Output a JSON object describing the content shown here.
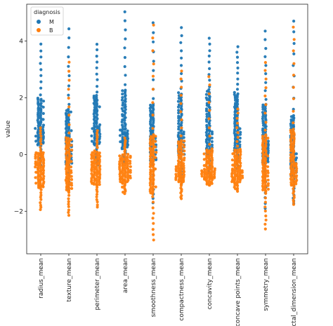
{
  "chart_data": {
    "type": "scatter",
    "subtype": "swarm",
    "title": "",
    "xlabel": "",
    "ylabel": "value",
    "ylim": [
      -3.5,
      5.3
    ],
    "yticks": [
      -2,
      0,
      2,
      4
    ],
    "ytick_labels": [
      "−2",
      "0",
      "2",
      "4"
    ],
    "categories": [
      "radius_mean",
      "texture_mean",
      "perimeter_mean",
      "area_mean",
      "smoothness_mean",
      "compactness_mean",
      "concavity_mean",
      "concave points_mean",
      "symmetry_mean",
      "fractal_dimension_mean"
    ],
    "legend": {
      "title": "diagnosis",
      "position": "top-left",
      "entries": [
        {
          "name": "M",
          "color": "#1f77b4"
        },
        {
          "name": "B",
          "color": "#ff7f0e"
        }
      ]
    },
    "series": [
      {
        "name": "M",
        "color": "#1f77b4",
        "summary": [
          {
            "category": "radius_mean",
            "min": -0.4,
            "p10": 0.3,
            "median": 1.0,
            "p90": 2.0,
            "max": 4.0
          },
          {
            "category": "texture_mean",
            "min": -1.3,
            "p10": -0.4,
            "median": 0.5,
            "p90": 1.6,
            "max": 4.6
          },
          {
            "category": "perimeter_mean",
            "min": -0.4,
            "p10": 0.3,
            "median": 1.0,
            "p90": 2.1,
            "max": 4.0
          },
          {
            "category": "area_mean",
            "min": -0.3,
            "p10": 0.2,
            "median": 0.9,
            "p90": 2.3,
            "max": 5.2
          },
          {
            "category": "smoothness_mean",
            "min": -1.8,
            "p10": -0.3,
            "median": 0.6,
            "p90": 1.8,
            "max": 4.8
          },
          {
            "category": "compactness_mean",
            "min": -1.1,
            "p10": -0.1,
            "median": 0.8,
            "p90": 2.2,
            "max": 4.6
          },
          {
            "category": "concavity_mean",
            "min": -0.8,
            "p10": 0.0,
            "median": 0.9,
            "p90": 2.3,
            "max": 4.2
          },
          {
            "category": "concave points_mean",
            "min": -0.5,
            "p10": 0.1,
            "median": 1.0,
            "p90": 2.2,
            "max": 3.9
          },
          {
            "category": "symmetry_mean",
            "min": -2.0,
            "p10": -0.3,
            "median": 0.5,
            "p90": 1.8,
            "max": 4.5
          },
          {
            "category": "fractal_dimension_mean",
            "min": -1.8,
            "p10": -0.8,
            "median": 0.1,
            "p90": 1.4,
            "max": 4.9
          }
        ]
      },
      {
        "name": "B",
        "color": "#ff7f0e",
        "summary": [
          {
            "category": "radius_mean",
            "min": -2.0,
            "p10": -1.2,
            "median": -0.5,
            "p90": 0.1,
            "max": 1.0
          },
          {
            "category": "texture_mean",
            "min": -2.2,
            "p10": -1.3,
            "median": -0.4,
            "p90": 0.6,
            "max": 3.4
          },
          {
            "category": "perimeter_mean",
            "min": -1.9,
            "p10": -1.1,
            "median": -0.5,
            "p90": 0.1,
            "max": 0.9
          },
          {
            "category": "area_mean",
            "min": -1.4,
            "p10": -1.0,
            "median": -0.5,
            "p90": 0.0,
            "max": 0.6
          },
          {
            "category": "smoothness_mean",
            "min": -3.1,
            "p10": -1.4,
            "median": -0.3,
            "p90": 0.7,
            "max": 4.8
          },
          {
            "category": "compactness_mean",
            "min": -1.6,
            "p10": -1.0,
            "median": -0.4,
            "p90": 0.5,
            "max": 3.1
          },
          {
            "category": "concavity_mean",
            "min": -1.1,
            "p10": -0.9,
            "median": -0.5,
            "p90": 0.2,
            "max": 2.9
          },
          {
            "category": "concave points_mean",
            "min": -1.3,
            "p10": -1.0,
            "median": -0.5,
            "p90": 0.2,
            "max": 1.7
          },
          {
            "category": "symmetry_mean",
            "min": -2.7,
            "p10": -1.3,
            "median": -0.4,
            "p90": 0.7,
            "max": 3.4
          },
          {
            "category": "fractal_dimension_mean",
            "min": -1.8,
            "p10": -1.1,
            "median": -0.3,
            "p90": 0.9,
            "max": 4.7
          }
        ]
      }
    ],
    "grid": false
  }
}
